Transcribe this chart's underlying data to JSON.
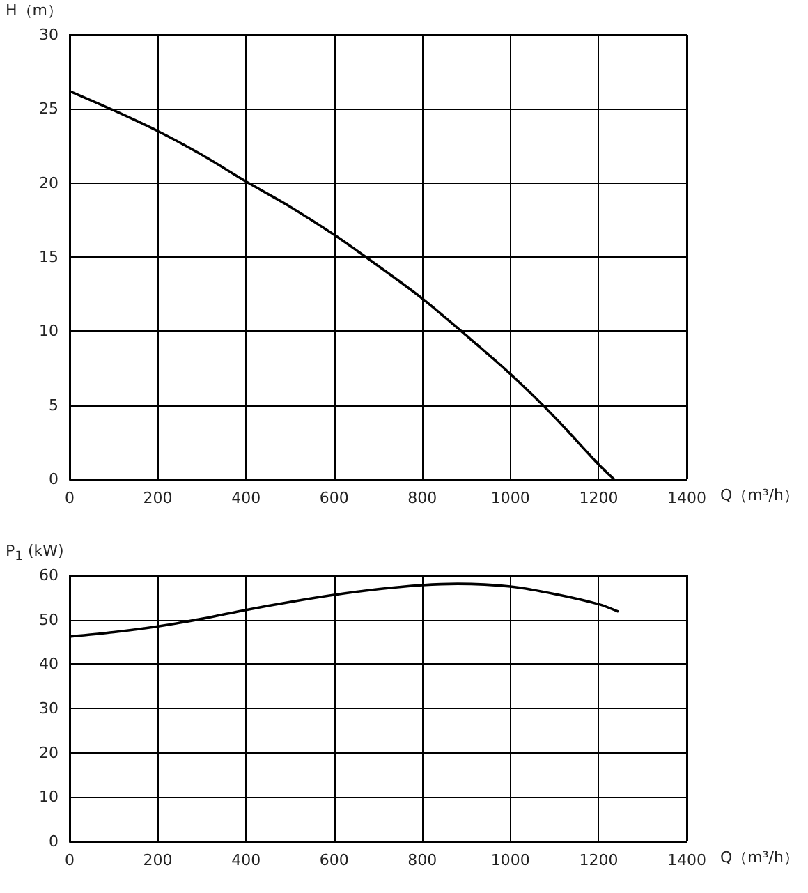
{
  "chart_data": [
    {
      "type": "line",
      "xlabel": "Q（m³/h）",
      "ylabel": "H（m）",
      "x": [
        0,
        100,
        200,
        300,
        400,
        500,
        600,
        700,
        800,
        900,
        1000,
        1100,
        1200,
        1235
      ],
      "series": [
        {
          "color": "#000000",
          "values": [
            26.2,
            24.9,
            23.5,
            21.9,
            20.1,
            18.4,
            16.5,
            14.4,
            12.2,
            9.7,
            7.1,
            4.2,
            1.0,
            0
          ]
        }
      ],
      "xlim": [
        0,
        1400
      ],
      "xticks": [
        0,
        200,
        400,
        600,
        800,
        1000,
        1200,
        1400
      ],
      "ylim": [
        0,
        30
      ],
      "yticks": [
        0,
        5,
        10,
        15,
        20,
        25,
        30
      ],
      "grid": true,
      "marker": "none",
      "line_style": "solid"
    },
    {
      "type": "line",
      "xlabel": "Q（m³/h）",
      "ylabel": "P$_{1}$ (kW)",
      "x": [
        0,
        100,
        200,
        300,
        400,
        500,
        600,
        700,
        800,
        880,
        1000,
        1100,
        1200,
        1245
      ],
      "series": [
        {
          "color": "#000000",
          "values": [
            46.2,
            47.2,
            48.5,
            50.2,
            52.2,
            54.0,
            55.6,
            56.9,
            57.8,
            58.1,
            57.5,
            55.8,
            53.5,
            51.8
          ]
        }
      ],
      "xlim": [
        0,
        1400
      ],
      "xticks": [
        0,
        200,
        400,
        600,
        800,
        1000,
        1200,
        1400
      ],
      "ylim": [
        0,
        60
      ],
      "yticks": [
        0,
        10,
        20,
        30,
        40,
        50,
        60
      ],
      "grid": true,
      "marker": "none",
      "line_style": "solid"
    }
  ]
}
